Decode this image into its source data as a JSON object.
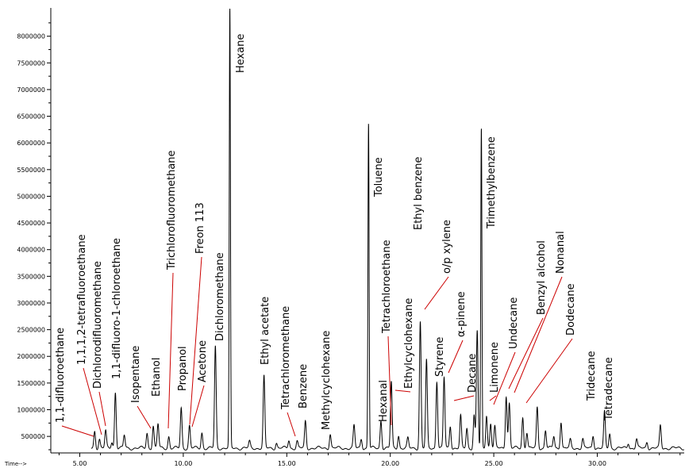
{
  "chart_data": {
    "type": "line",
    "title": "",
    "xlabel": "Time-->",
    "ylabel": "",
    "xlim": [
      3.6,
      34.2
    ],
    "ylim": [
      190000,
      8530000
    ],
    "grid": false,
    "legend": "none",
    "colors": {
      "trace": "#000000",
      "leader": "#cc0000"
    },
    "y_ticks": [
      500000,
      1000000,
      1500000,
      2000000,
      2500000,
      3000000,
      3500000,
      4000000,
      4500000,
      5000000,
      5500000,
      6000000,
      6500000,
      7000000,
      7500000,
      8000000
    ],
    "y_tick_labels": [
      "500000",
      "1000000",
      "1500000",
      "2000000",
      "2500000",
      "3000000",
      "3500000",
      "4000000",
      "4500000",
      "5000000",
      "5500000",
      "6000000",
      "6500000",
      "7000000",
      "7500000",
      "8000000"
    ],
    "x_ticks": [
      5,
      10,
      15,
      20,
      25,
      30
    ],
    "x_tick_labels": [
      "5.00",
      "10.00",
      "15.00",
      "20.00",
      "25.00",
      "30.00"
    ],
    "baseline": 280000,
    "series": [
      {
        "peaks": [
          [
            5.72,
            600000
          ],
          [
            5.95,
            450000
          ],
          [
            6.25,
            600000
          ],
          [
            6.55,
            400000
          ],
          [
            6.72,
            1330000
          ],
          [
            7.15,
            520000
          ],
          [
            8.25,
            560000
          ],
          [
            8.55,
            700000
          ],
          [
            8.78,
            730000
          ],
          [
            9.3,
            500000
          ],
          [
            9.9,
            1030000
          ],
          [
            10.3,
            700000
          ],
          [
            10.9,
            570000
          ],
          [
            11.55,
            2180000
          ],
          [
            12.25,
            8500000
          ],
          [
            13.2,
            400000
          ],
          [
            13.9,
            1620000
          ],
          [
            14.5,
            380000
          ],
          [
            15.1,
            430000
          ],
          [
            15.5,
            410000
          ],
          [
            15.9,
            780000
          ],
          [
            17.1,
            550000
          ],
          [
            18.25,
            700000
          ],
          [
            18.6,
            460000
          ],
          [
            18.95,
            6380000
          ],
          [
            19.55,
            800000
          ],
          [
            20.05,
            1520000
          ],
          [
            20.4,
            520000
          ],
          [
            20.85,
            460000
          ],
          [
            21.45,
            2650000
          ],
          [
            21.75,
            1920000
          ],
          [
            22.25,
            1540000
          ],
          [
            22.6,
            1600000
          ],
          [
            22.9,
            700000
          ],
          [
            23.4,
            880000
          ],
          [
            23.7,
            650000
          ],
          [
            24.05,
            900000
          ],
          [
            24.2,
            2480000
          ],
          [
            24.4,
            6250000
          ],
          [
            24.65,
            900000
          ],
          [
            24.85,
            750000
          ],
          [
            25.05,
            680000
          ],
          [
            25.6,
            1270000
          ],
          [
            25.75,
            1120000
          ],
          [
            26.4,
            850000
          ],
          [
            26.6,
            580000
          ],
          [
            27.1,
            1040000
          ],
          [
            27.5,
            620000
          ],
          [
            27.9,
            500000
          ],
          [
            28.25,
            780000
          ],
          [
            28.7,
            430000
          ],
          [
            29.3,
            450000
          ],
          [
            29.8,
            520000
          ],
          [
            30.35,
            950000
          ],
          [
            30.6,
            550000
          ],
          [
            31.5,
            380000
          ],
          [
            31.9,
            450000
          ],
          [
            32.4,
            400000
          ],
          [
            33.05,
            700000
          ]
        ]
      }
    ],
    "annotations": [
      {
        "text": "1,1-difluoroethane",
        "peak_x": 5.72
      },
      {
        "text": "1,1,1,2-tetrafluoroethane",
        "peak_x": 5.95
      },
      {
        "text": "Dichlorodifluoromethane",
        "peak_x": 6.25
      },
      {
        "text": "1,1-difluoro-1-chloroethane",
        "peak_x": 6.72
      },
      {
        "text": "Isopentane",
        "peak_x": 8.25
      },
      {
        "text": "Ethanol",
        "peak_x": 8.78
      },
      {
        "text": "Trichlorofluoromethane",
        "peak_x": 9.3
      },
      {
        "text": "Propanol",
        "peak_x": 9.9
      },
      {
        "text": "Freon 113",
        "peak_x": 10.15
      },
      {
        "text": "Acetone",
        "peak_x": 10.3
      },
      {
        "text": "Dichloromethane",
        "peak_x": 11.55
      },
      {
        "text": "Hexane",
        "peak_x": 12.25
      },
      {
        "text": "Ethyl acetate",
        "peak_x": 13.9
      },
      {
        "text": "Tetrachloromethane",
        "peak_x": 15.4
      },
      {
        "text": "Benzene",
        "peak_x": 15.9
      },
      {
        "text": "Methylcyclohexane",
        "peak_x": 17.1
      },
      {
        "text": "Toluene",
        "peak_x": 18.95
      },
      {
        "text": "Hexanal",
        "peak_x": 19.55
      },
      {
        "text": "Tetrachloroethane",
        "peak_x": 19.95
      },
      {
        "text": "Ethylcyclohexane",
        "peak_x": 20.35
      },
      {
        "text": "Ethyl benzene",
        "peak_x": 21.45
      },
      {
        "text": "o/p xylene",
        "peak_x": 21.7
      },
      {
        "text": "Styrene",
        "peak_x": 22.25
      },
      {
        "text": "α-pinene",
        "peak_x": 22.6
      },
      {
        "text": "Decane",
        "peak_x": 22.9
      },
      {
        "text": "Trimethylbenzene",
        "peak_x": 24.4
      },
      {
        "text": "Limonene",
        "peak_x": 24.6
      },
      {
        "text": "Undecane",
        "peak_x": 24.85
      },
      {
        "text": "Benzyl alcohol",
        "peak_x": 25.6
      },
      {
        "text": "Nonanal",
        "peak_x": 25.8
      },
      {
        "text": "Dodecane",
        "peak_x": 26.4
      },
      {
        "text": "Tridecane",
        "peak_x": 28.25
      },
      {
        "text": "Tetradecane",
        "peak_x": 30.35
      }
    ]
  }
}
